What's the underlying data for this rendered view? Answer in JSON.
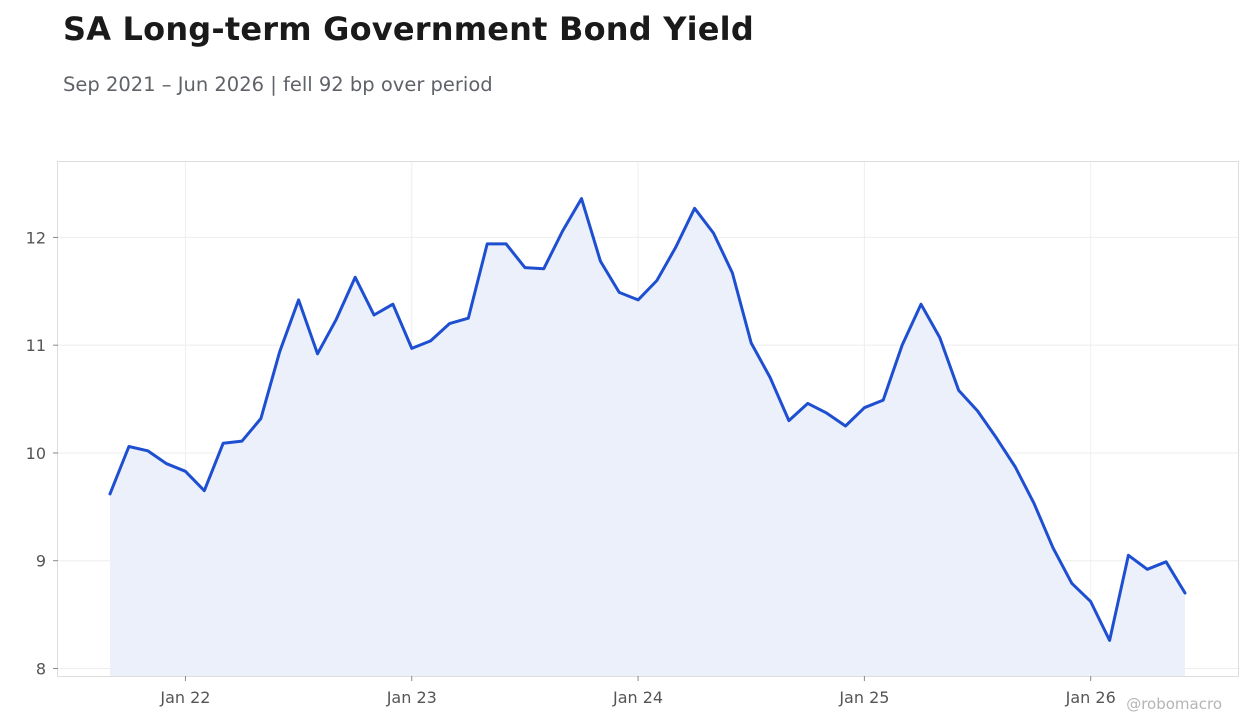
{
  "chart_data": {
    "type": "line",
    "title": "SA Long-term Government Bond Yield",
    "subtitle": "Sep 2021 – Jun 2026 | fell 92 bp over period",
    "xlabel": "",
    "ylabel": "",
    "x_start": "2021-09",
    "x_end": "2026-06",
    "ylim": [
      7.93,
      12.7
    ],
    "yticks": [
      8,
      9,
      10,
      11,
      12
    ],
    "xticks": [
      {
        "label": "Jan 22",
        "date": "2022-01"
      },
      {
        "label": "Jan 23",
        "date": "2023-01"
      },
      {
        "label": "Jan 24",
        "date": "2024-01"
      },
      {
        "label": "Jan 25",
        "date": "2025-01"
      },
      {
        "label": "Jan 26",
        "date": "2026-01"
      }
    ],
    "grid": true,
    "legend": "none",
    "series": [
      {
        "color": "#1f4fd1",
        "fill": "#ebf0fb",
        "x": [
          "2021-09",
          "2021-10",
          "2021-11",
          "2021-12",
          "2022-01",
          "2022-02",
          "2022-03",
          "2022-04",
          "2022-05",
          "2022-06",
          "2022-07",
          "2022-08",
          "2022-09",
          "2022-10",
          "2022-11",
          "2022-12",
          "2023-01",
          "2023-02",
          "2023-03",
          "2023-04",
          "2023-05",
          "2023-06",
          "2023-07",
          "2023-08",
          "2023-09",
          "2023-10",
          "2023-11",
          "2023-12",
          "2024-01",
          "2024-02",
          "2024-03",
          "2024-04",
          "2024-05",
          "2024-06",
          "2024-07",
          "2024-08",
          "2024-09",
          "2024-10",
          "2024-11",
          "2024-12",
          "2025-01",
          "2025-02",
          "2025-03",
          "2025-04",
          "2025-05",
          "2025-06",
          "2025-07",
          "2025-08",
          "2025-09",
          "2025-10",
          "2025-11",
          "2025-12",
          "2026-01",
          "2026-02",
          "2026-03",
          "2026-04",
          "2026-05",
          "2026-06"
        ],
        "values": [
          9.62,
          10.06,
          10.02,
          9.9,
          9.83,
          9.65,
          10.09,
          10.11,
          10.32,
          10.94,
          11.42,
          10.92,
          11.24,
          11.63,
          11.28,
          11.38,
          10.97,
          11.04,
          11.2,
          11.25,
          11.94,
          11.94,
          11.72,
          11.71,
          12.06,
          12.36,
          11.78,
          11.49,
          11.42,
          11.6,
          11.91,
          12.27,
          12.04,
          11.67,
          11.02,
          10.7,
          10.3,
          10.46,
          10.37,
          10.25,
          10.42,
          10.49,
          11.0,
          11.38,
          11.07,
          10.58,
          10.39,
          10.14,
          9.87,
          9.53,
          9.12,
          8.79,
          8.62,
          8.26,
          9.05,
          8.92,
          8.99,
          8.7
        ]
      }
    ]
  },
  "watermark": "@robomacro"
}
